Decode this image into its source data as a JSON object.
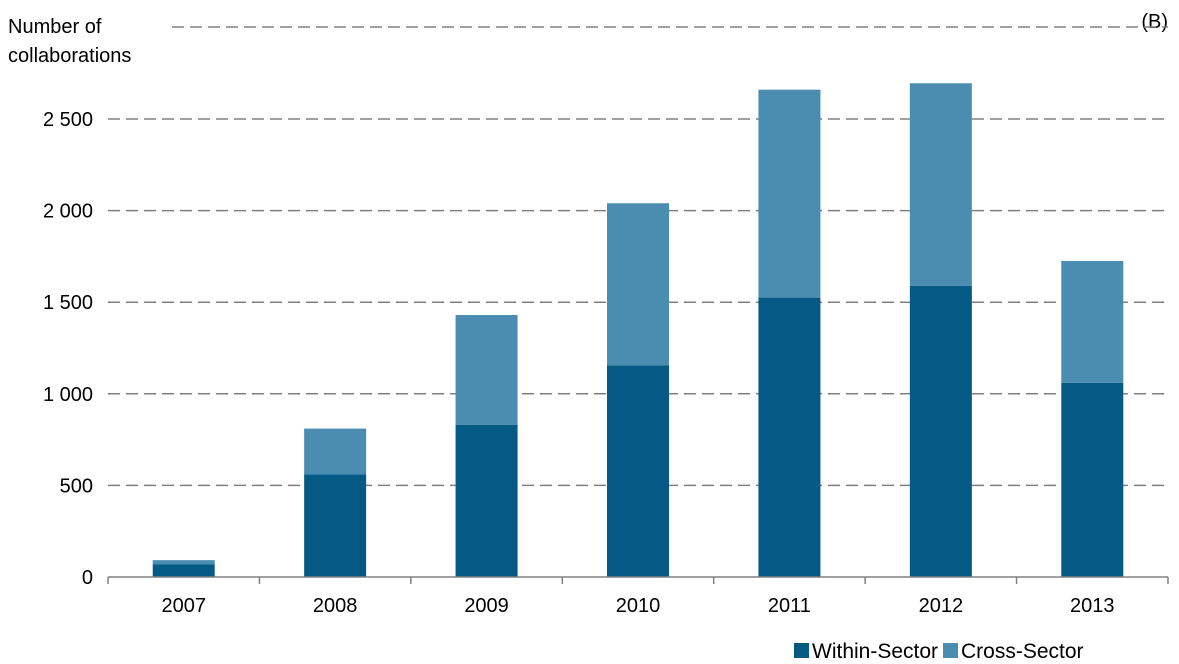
{
  "chart_data": {
    "type": "bar",
    "stacked": true,
    "panel_label": "(B)",
    "ylabel_lines": [
      "Number of",
      "collaborations"
    ],
    "categories": [
      "2007",
      "2008",
      "2009",
      "2010",
      "2011",
      "2012",
      "2013"
    ],
    "series": [
      {
        "name": "Within-Sector",
        "color": "#045a85",
        "values": [
          70,
          560,
          830,
          1155,
          1525,
          1590,
          1060
        ]
      },
      {
        "name": "Cross-Sector",
        "color": "#4a8db0",
        "values": [
          22,
          250,
          600,
          885,
          1135,
          1105,
          665
        ]
      }
    ],
    "ylim": [
      0,
      2500
    ],
    "yticks": [
      0,
      500,
      1000,
      1500,
      2000,
      2500
    ],
    "ytick_labels": [
      "0",
      "500",
      "1 000",
      "1 500",
      "2 000",
      "2 500"
    ],
    "grid": true,
    "legend_position": "bottom-right"
  }
}
